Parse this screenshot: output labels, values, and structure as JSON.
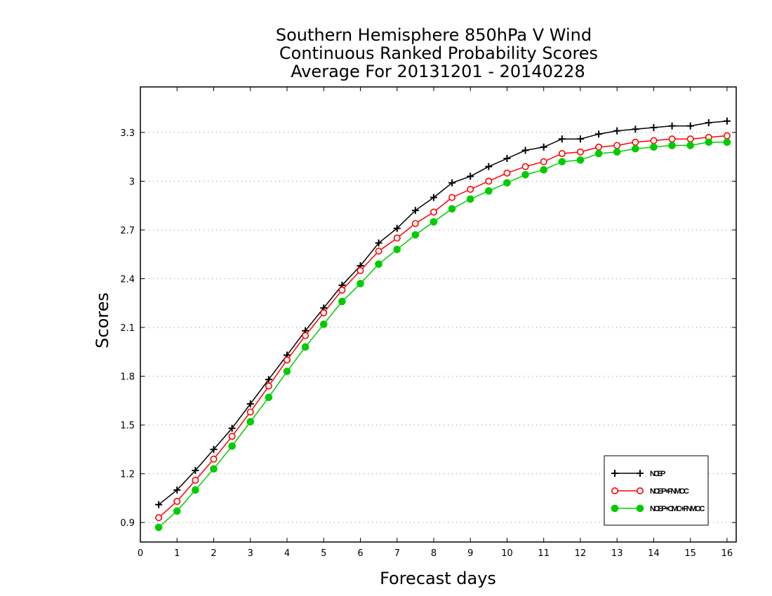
{
  "chart_data": {
    "type": "line",
    "title": [
      "Southern Hemisphere 850hPa V Wind",
      "Continuous Ranked Probability Scores",
      "Average For 20131201 - 20140228"
    ],
    "xlabel": "Forecast days",
    "ylabel": "Scores",
    "xlim": [
      0,
      16.25
    ],
    "ylim": [
      0.78,
      3.58
    ],
    "xticks": [
      "0",
      "1",
      "2",
      "3",
      "4",
      "5",
      "6",
      "7",
      "8",
      "9",
      "10",
      "11",
      "12",
      "13",
      "14",
      "15",
      "16"
    ],
    "yticks": [
      "0.9",
      "1.2",
      "1.5",
      "1.8",
      "2.1",
      "2.4",
      "2.7",
      "3",
      "3.3"
    ],
    "grid": "horizontal-dotted",
    "legend_position": "bottom-right",
    "x": [
      0.5,
      1,
      1.5,
      2,
      2.5,
      3,
      3.5,
      4,
      4.5,
      5,
      5.5,
      6,
      6.5,
      7,
      7.5,
      8,
      8.5,
      9,
      9.5,
      10,
      10.5,
      11,
      11.5,
      12,
      12.5,
      13,
      13.5,
      14,
      14.5,
      15,
      15.5,
      16
    ],
    "series": [
      {
        "name": "NCEP",
        "color": "#000000",
        "marker": "plus",
        "values": [
          1.01,
          1.1,
          1.22,
          1.35,
          1.48,
          1.63,
          1.78,
          1.93,
          2.08,
          2.22,
          2.36,
          2.48,
          2.62,
          2.71,
          2.82,
          2.9,
          2.99,
          3.03,
          3.09,
          3.14,
          3.19,
          3.21,
          3.26,
          3.26,
          3.29,
          3.31,
          3.32,
          3.33,
          3.34,
          3.34,
          3.36,
          3.37
        ]
      },
      {
        "name": "NCEP+FNMOC",
        "color": "#ff0000",
        "marker": "open-circle",
        "values": [
          0.93,
          1.03,
          1.16,
          1.29,
          1.43,
          1.58,
          1.74,
          1.9,
          2.05,
          2.19,
          2.33,
          2.45,
          2.57,
          2.65,
          2.74,
          2.81,
          2.9,
          2.95,
          3.0,
          3.05,
          3.09,
          3.12,
          3.17,
          3.18,
          3.21,
          3.22,
          3.24,
          3.25,
          3.26,
          3.26,
          3.27,
          3.28
        ]
      },
      {
        "name": "NCEP+CMC+FNMOC",
        "color": "#00cc00",
        "marker": "filled-circle",
        "values": [
          0.87,
          0.97,
          1.1,
          1.23,
          1.37,
          1.52,
          1.67,
          1.83,
          1.98,
          2.12,
          2.26,
          2.37,
          2.49,
          2.58,
          2.67,
          2.75,
          2.83,
          2.89,
          2.94,
          2.99,
          3.04,
          3.07,
          3.12,
          3.13,
          3.17,
          3.18,
          3.2,
          3.21,
          3.22,
          3.22,
          3.24,
          3.24
        ]
      }
    ]
  }
}
